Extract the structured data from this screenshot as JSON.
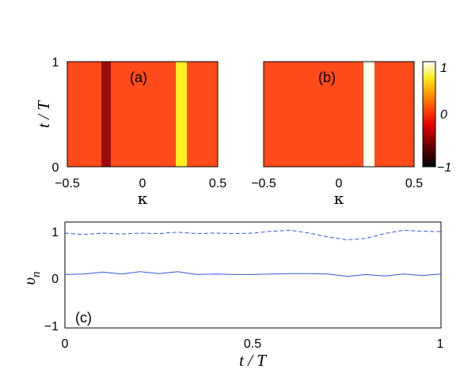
{
  "chart_data": [
    {
      "type": "heatmap",
      "panel_label": "(a)",
      "xlabel": "κ",
      "ylabel": "t / T",
      "xlim": [
        -0.5,
        0.5
      ],
      "ylim": [
        0,
        1
      ],
      "xticks": [
        "−0.5",
        "0",
        "0.5"
      ],
      "yticks": [
        "0",
        "1"
      ],
      "background_value": 0.0,
      "columns": [
        {
          "kappa": -0.25,
          "value": -0.45
        },
        {
          "kappa": 0.25,
          "value": 0.75
        }
      ]
    },
    {
      "type": "heatmap",
      "panel_label": "(b)",
      "xlabel": "κ",
      "xlim": [
        -0.5,
        0.5
      ],
      "ylim": [
        0,
        1
      ],
      "xticks": [
        "−0.5",
        "0",
        "0.5"
      ],
      "background_value": 0.0,
      "columns": [
        {
          "kappa": 0.25,
          "value": 1.0
        }
      ],
      "colorbar": {
        "range": [
          -1,
          1
        ],
        "ticks": [
          "1",
          "0",
          "−1"
        ]
      }
    },
    {
      "type": "line",
      "panel_label": "(c)",
      "xlabel": "t / T",
      "ylabel": "υ",
      "ylabel_subscript": "n",
      "xlim": [
        0,
        1
      ],
      "ylim": [
        -1.1,
        1.1
      ],
      "xticks": [
        "0",
        "0.5",
        "1"
      ],
      "yticks": [
        "1",
        "0",
        "−1"
      ],
      "x": [
        0,
        0.05,
        0.1,
        0.15,
        0.2,
        0.25,
        0.3,
        0.35,
        0.4,
        0.45,
        0.5,
        0.55,
        0.6,
        0.65,
        0.7,
        0.75,
        0.8,
        0.85,
        0.9,
        0.95,
        1.0
      ],
      "series": [
        {
          "style": "dashed",
          "color": "#3355dd",
          "values": [
            0.87,
            0.84,
            0.87,
            0.85,
            0.87,
            0.86,
            0.89,
            0.86,
            0.87,
            0.86,
            0.87,
            0.91,
            0.93,
            0.87,
            0.79,
            0.73,
            0.76,
            0.86,
            0.93,
            0.91,
            0.9
          ]
        },
        {
          "style": "solid",
          "color": "#3355dd",
          "values": [
            0.01,
            0.02,
            0.06,
            0.02,
            0.07,
            0.03,
            0.07,
            0.01,
            0.02,
            0.01,
            0.01,
            0.02,
            0.03,
            0.03,
            0.02,
            -0.03,
            0.01,
            -0.02,
            0.02,
            -0.01,
            0.02
          ]
        }
      ]
    }
  ],
  "colors": {
    "heat_background": "#ff4a1a",
    "heat_dark": "#9a0d0d",
    "heat_yellow": "#ffee22",
    "heat_white": "#ffffee",
    "line": "#3355dd"
  }
}
